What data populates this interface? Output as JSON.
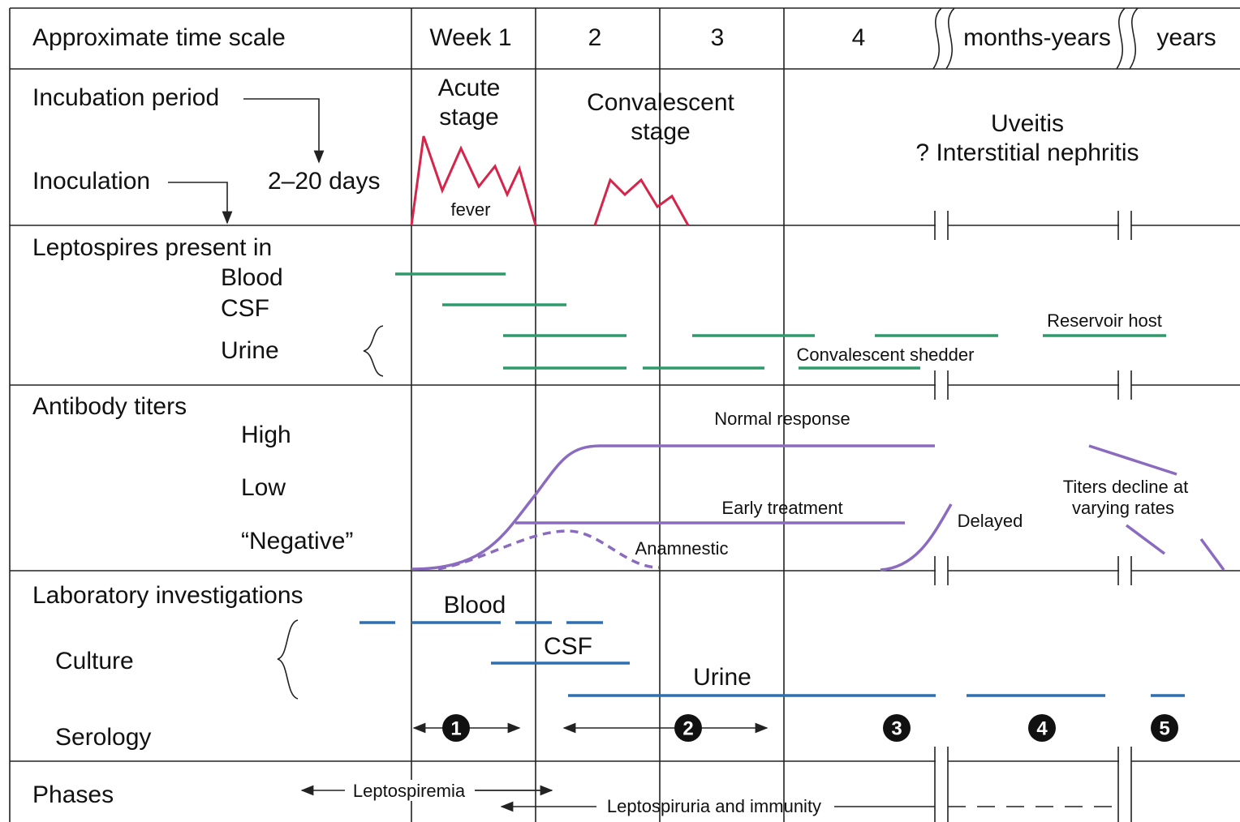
{
  "header": {
    "label": "Approximate time scale",
    "columns": [
      "Week 1",
      "2",
      "3",
      "4",
      "months-years",
      "years"
    ]
  },
  "incubation": {
    "label": "Incubation period",
    "inoculation": "Inoculation",
    "duration": "2–20 days",
    "acute": [
      "Acute",
      "stage"
    ],
    "fever": "fever",
    "convalescent": [
      "Convalescent",
      "stage"
    ],
    "late": [
      "Uveitis",
      "? Interstitial nephritis"
    ]
  },
  "leptospires": {
    "label": "Leptospires present in",
    "blood": "Blood",
    "csf": "CSF",
    "urine": "Urine",
    "reservoir": "Reservoir host",
    "shedder": "Convalescent shedder"
  },
  "antibody": {
    "label": "Antibody titers",
    "high": "High",
    "low": "Low",
    "negative": "“Negative”",
    "normal": "Normal response",
    "early": "Early treatment",
    "anamnestic": "Anamnestic",
    "delayed": "Delayed",
    "decline": [
      "Titers decline at",
      "varying rates"
    ]
  },
  "laboratory": {
    "label": "Laboratory investigations",
    "culture": "Culture",
    "serology": "Serology",
    "blood": "Blood",
    "csf": "CSF",
    "urine": "Urine",
    "markers": [
      "1",
      "2",
      "3",
      "4",
      "5"
    ]
  },
  "phases": {
    "label": "Phases",
    "leptospiremia": "Leptospiremia",
    "leptospiruria": "Leptospiruria and immunity"
  }
}
